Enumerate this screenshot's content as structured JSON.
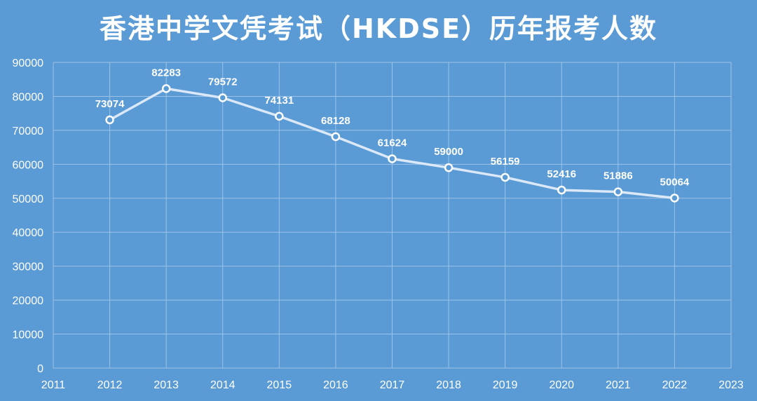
{
  "chart_data": {
    "type": "line",
    "title": "香港中学文凭考试（HKDSE）历年报考人数",
    "x": [
      2012,
      2013,
      2014,
      2015,
      2016,
      2017,
      2018,
      2019,
      2020,
      2021,
      2022
    ],
    "series": [
      {
        "values": [
          73074,
          82283,
          79572,
          74131,
          68128,
          61624,
          59000,
          56159,
          52416,
          51886,
          50064
        ]
      }
    ],
    "xlim": [
      2011,
      2023
    ],
    "ylim": [
      0,
      90000
    ],
    "xticks": [
      "2011",
      "2012",
      "2013",
      "2014",
      "2015",
      "2016",
      "2017",
      "2018",
      "2019",
      "2020",
      "2021",
      "2022",
      "2023"
    ],
    "yticks": [
      "0",
      "10000",
      "20000",
      "30000",
      "40000",
      "50000",
      "60000",
      "70000",
      "80000",
      "90000"
    ],
    "data_labels": [
      "73074",
      "82283",
      "79572",
      "74131",
      "68128",
      "61624",
      "59000",
      "56159",
      "52416",
      "51886",
      "50064"
    ],
    "grid": true,
    "colors": {
      "background": "#5b9bd5",
      "line": "#dbe8f7",
      "grid": "#9cc2e8",
      "text": "#ffffff"
    }
  }
}
